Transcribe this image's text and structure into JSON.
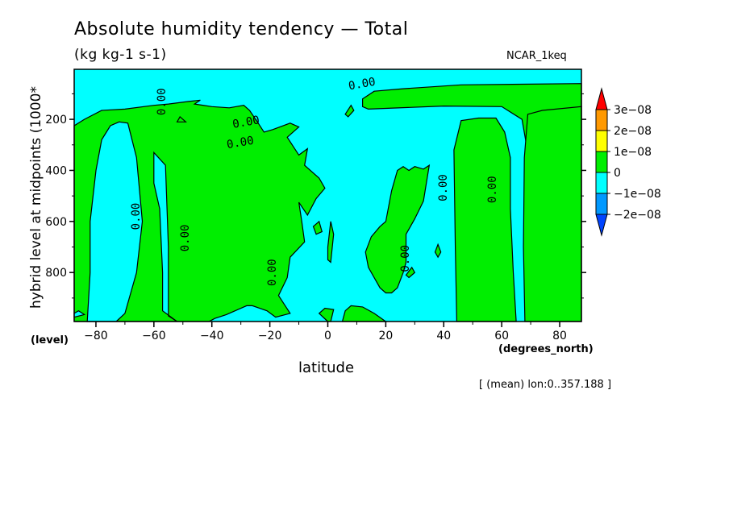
{
  "chart_data": {
    "type": "heatmap",
    "title": "Absolute humidity tendency — Total",
    "subtitle": "(kg kg-1 s-1)",
    "model_tag": "NCAR_1keq",
    "xlabel": "latitude",
    "x_units": "(degrees_north)",
    "ylabel": "hybrid level at midpoints (1000*",
    "y_units": "(level)",
    "footnote": "[ (mean) lon:0..357.188 ]",
    "xlim": [
      -87.5,
      87.5
    ],
    "ylim": [
      992,
      4
    ],
    "x_ticks": [
      -80,
      -60,
      -40,
      -20,
      0,
      20,
      40,
      60,
      80
    ],
    "x_tick_labels": [
      "−80",
      "−60",
      "−40",
      "−20",
      "0",
      "20",
      "40",
      "60",
      "80"
    ],
    "y_ticks": [
      200,
      400,
      600,
      800
    ],
    "y_tick_labels": [
      "200",
      "400",
      "600",
      "800"
    ],
    "colorbar": {
      "labels": [
        "3e−08",
        "2e−08",
        "1e−08",
        "0",
        "−1e−08",
        "−2e−08"
      ],
      "colors": [
        "#ff0000",
        "#ff9900",
        "#ffff00",
        "#00ee00",
        "#00ffff",
        "#0099ff",
        "#0044ff"
      ]
    },
    "fill_colors": {
      "negative": "#00ffff",
      "positive": "#00ee00"
    },
    "contour_label": "0.00",
    "positive_regions": [
      {
        "name": "upper-band",
        "points": [
          [
            -87.5,
            225
          ],
          [
            -84,
            200
          ],
          [
            -78,
            165
          ],
          [
            -70,
            160
          ],
          [
            -60,
            145
          ],
          [
            -55,
            140
          ],
          [
            -48,
            130
          ],
          [
            -44,
            125
          ],
          [
            -46,
            140
          ],
          [
            -40,
            150
          ],
          [
            -34,
            155
          ],
          [
            -29,
            145
          ],
          [
            -27,
            165
          ],
          [
            -24,
            215
          ],
          [
            -22,
            250
          ],
          [
            -19,
            240
          ],
          [
            -13,
            215
          ],
          [
            -10,
            230
          ],
          [
            -14,
            270
          ],
          [
            -10,
            340
          ],
          [
            -7,
            315
          ],
          [
            -8,
            380
          ],
          [
            -3,
            430
          ],
          [
            -1,
            470
          ],
          [
            -4,
            510
          ],
          [
            -7,
            575
          ],
          [
            -10,
            525
          ],
          [
            -9,
            600
          ],
          [
            -8,
            680
          ],
          [
            -13,
            740
          ],
          [
            -14,
            820
          ],
          [
            -17,
            890
          ],
          [
            -13,
            960
          ],
          [
            -18,
            975
          ],
          [
            -21,
            950
          ],
          [
            -26,
            930
          ],
          [
            -28,
            930
          ],
          [
            -35,
            965
          ],
          [
            -39,
            980
          ],
          [
            -41,
            992
          ],
          [
            -87.5,
            992
          ]
        ]
      },
      {
        "name": "upper-right-band",
        "points": [
          [
            12,
            120
          ],
          [
            16,
            90
          ],
          [
            26,
            80
          ],
          [
            46,
            65
          ],
          [
            87.5,
            60
          ],
          [
            87.5,
            320
          ],
          [
            69,
            330
          ],
          [
            67,
            200
          ],
          [
            60,
            150
          ],
          [
            40,
            148
          ],
          [
            14,
            160
          ],
          [
            12,
            150
          ]
        ]
      },
      {
        "name": "band-40-60",
        "points": [
          [
            44.5,
            992
          ],
          [
            44,
            700
          ],
          [
            43.5,
            320
          ],
          [
            46,
            205
          ],
          [
            52,
            195
          ],
          [
            58,
            195
          ],
          [
            61,
            250
          ],
          [
            63,
            350
          ],
          [
            63,
            550
          ],
          [
            64,
            800
          ],
          [
            65,
            992
          ]
        ]
      },
      {
        "name": "right-edge",
        "points": [
          [
            68,
            992
          ],
          [
            67.5,
            700
          ],
          [
            67.8,
            350
          ],
          [
            69,
            180
          ],
          [
            74,
            165
          ],
          [
            87.5,
            150
          ],
          [
            87.5,
            992
          ]
        ]
      },
      {
        "name": "band-10-35",
        "points": [
          [
            20,
            600
          ],
          [
            22,
            480
          ],
          [
            24,
            400
          ],
          [
            26,
            385
          ],
          [
            28,
            400
          ],
          [
            30,
            385
          ],
          [
            33,
            395
          ],
          [
            35,
            380
          ],
          [
            33,
            520
          ],
          [
            30,
            590
          ],
          [
            27,
            650
          ],
          [
            27,
            760
          ],
          [
            26,
            800
          ],
          [
            24,
            860
          ],
          [
            22,
            880
          ],
          [
            20,
            880
          ],
          [
            18,
            860
          ],
          [
            14,
            780
          ],
          [
            13,
            720
          ],
          [
            15,
            660
          ],
          [
            18,
            620
          ]
        ]
      },
      {
        "name": "bottom-10-20",
        "points": [
          [
            5,
            992
          ],
          [
            6,
            950
          ],
          [
            8,
            930
          ],
          [
            12,
            935
          ],
          [
            16,
            960
          ],
          [
            20,
            992
          ]
        ]
      },
      {
        "name": "bottom-0",
        "points": [
          [
            0,
            992
          ],
          [
            -3,
            960
          ],
          [
            -1,
            940
          ],
          [
            2,
            945
          ],
          [
            1,
            992
          ]
        ]
      },
      {
        "name": "pocket-lon-8",
        "points": [
          [
            6,
            180
          ],
          [
            8,
            145
          ],
          [
            9,
            165
          ],
          [
            7,
            190
          ]
        ]
      },
      {
        "name": "pocket-lon-2",
        "points": [
          [
            0,
            700
          ],
          [
            1,
            600
          ],
          [
            2,
            650
          ],
          [
            1,
            760
          ],
          [
            0,
            750
          ]
        ]
      },
      {
        "name": "pocket-lon-28",
        "points": [
          [
            27,
            810
          ],
          [
            29,
            780
          ],
          [
            30,
            800
          ],
          [
            28,
            820
          ]
        ]
      },
      {
        "name": "pocket-lon-37",
        "points": [
          [
            37,
            720
          ],
          [
            38,
            690
          ],
          [
            39,
            720
          ],
          [
            38,
            740
          ]
        ]
      },
      {
        "name": "pocket-lon-55",
        "points": [
          [
            -52,
            210
          ],
          [
            -51,
            190
          ],
          [
            -49,
            210
          ]
        ]
      },
      {
        "name": "pocket-lon-10",
        "points": [
          [
            -5,
            620
          ],
          [
            -3,
            600
          ],
          [
            -2,
            640
          ],
          [
            -4,
            650
          ]
        ]
      }
    ],
    "negative_holes": [
      {
        "name": "hole-left-col",
        "points": [
          [
            -83,
            992
          ],
          [
            -82,
            800
          ],
          [
            -82,
            600
          ],
          [
            -80,
            400
          ],
          [
            -78,
            280
          ],
          [
            -75,
            225
          ],
          [
            -72,
            210
          ],
          [
            -69,
            215
          ],
          [
            -66,
            350
          ],
          [
            -64,
            600
          ],
          [
            -66,
            800
          ],
          [
            -70,
            960
          ],
          [
            -73,
            992
          ]
        ]
      },
      {
        "name": "hole-mid-left",
        "points": [
          [
            -60,
            330
          ],
          [
            -60,
            450
          ],
          [
            -58,
            550
          ],
          [
            -57,
            800
          ],
          [
            -57,
            950
          ],
          [
            -52,
            992
          ],
          [
            -55,
            970
          ],
          [
            -55,
            700
          ],
          [
            -56,
            380
          ]
        ]
      },
      {
        "name": "hole-left-edge",
        "points": [
          [
            -87.5,
            960
          ],
          [
            -86,
            950
          ],
          [
            -84,
            965
          ],
          [
            -87.5,
            975
          ]
        ]
      }
    ],
    "contour_label_positions": [
      [
        -30,
        305
      ],
      [
        -28,
        225
      ],
      [
        -56,
        131
      ],
      [
        -65,
        580
      ],
      [
        -48,
        665
      ],
      [
        -18,
        800
      ],
      [
        28,
        745
      ],
      [
        41,
        468
      ],
      [
        58,
        475
      ],
      [
        12,
        75
      ]
    ]
  }
}
